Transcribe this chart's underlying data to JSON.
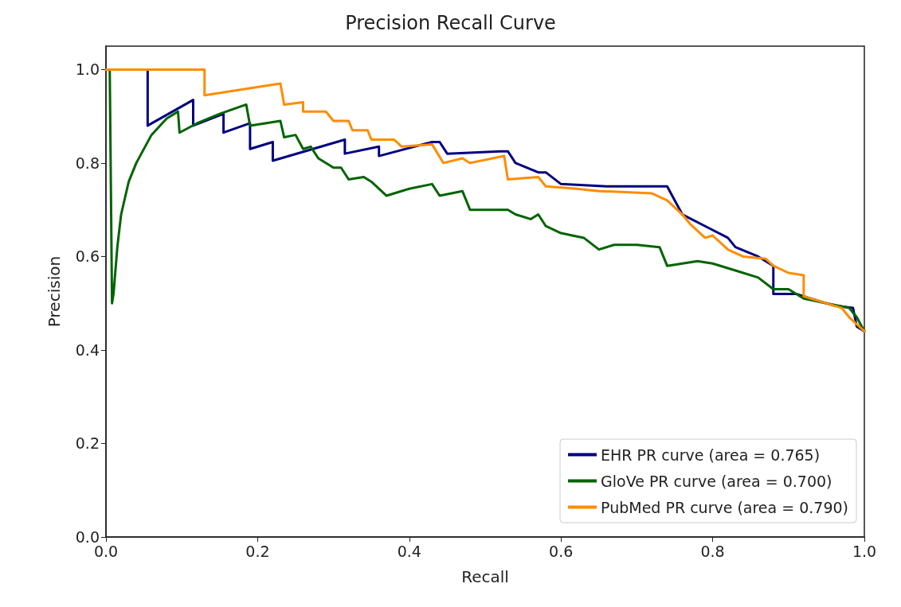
{
  "chart_data": {
    "type": "line",
    "title": "Precision Recall Curve",
    "xlabel": "Recall",
    "ylabel": "Precision",
    "xlim": [
      0,
      1
    ],
    "ylim": [
      0,
      1.05
    ],
    "xticks": [
      {
        "value": 0,
        "label": "0.0"
      },
      {
        "value": 0.2,
        "label": "0.2"
      },
      {
        "value": 0.4,
        "label": "0.4"
      },
      {
        "value": 0.6,
        "label": "0.6"
      },
      {
        "value": 0.8,
        "label": "0.8"
      },
      {
        "value": 1,
        "label": "1.0"
      }
    ],
    "yticks": [
      {
        "value": 0,
        "label": "0.0"
      },
      {
        "value": 0.2,
        "label": "0.2"
      },
      {
        "value": 0.4,
        "label": "0.4"
      },
      {
        "value": 0.6,
        "label": "0.6"
      },
      {
        "value": 0.8,
        "label": "0.8"
      },
      {
        "value": 1,
        "label": "1.0"
      }
    ],
    "grid": false,
    "legend": "bottom right",
    "marker": "none",
    "line_style": "solid",
    "series": [
      {
        "name": "EHR PR curve (area = 0.765)",
        "color": "#000080",
        "x": [
          0,
          0.055,
          0.055,
          0.115,
          0.115,
          0.155,
          0.155,
          0.19,
          0.19,
          0.22,
          0.22,
          0.315,
          0.315,
          0.36,
          0.36,
          0.43,
          0.44,
          0.45,
          0.52,
          0.53,
          0.54,
          0.57,
          0.58,
          0.6,
          0.66,
          0.72,
          0.74,
          0.75,
          0.76,
          0.79,
          0.82,
          0.83,
          0.86,
          0.88,
          0.88,
          0.91,
          0.93,
          0.96,
          0.985,
          0.99,
          1.0
        ],
        "values": [
          1,
          1,
          0.88,
          0.935,
          0.88,
          0.905,
          0.865,
          0.885,
          0.83,
          0.845,
          0.805,
          0.85,
          0.82,
          0.835,
          0.815,
          0.845,
          0.845,
          0.82,
          0.825,
          0.825,
          0.8,
          0.78,
          0.78,
          0.755,
          0.75,
          0.75,
          0.75,
          0.72,
          0.69,
          0.665,
          0.64,
          0.62,
          0.6,
          0.58,
          0.52,
          0.52,
          0.51,
          0.495,
          0.49,
          0.45,
          0.44
        ]
      },
      {
        "name": "GloVe PR curve (area = 0.700)",
        "color": "#006400",
        "x": [
          0.005,
          0.008,
          0.01,
          0.015,
          0.02,
          0.03,
          0.04,
          0.06,
          0.08,
          0.095,
          0.097,
          0.12,
          0.15,
          0.185,
          0.19,
          0.23,
          0.235,
          0.25,
          0.26,
          0.27,
          0.28,
          0.3,
          0.31,
          0.32,
          0.34,
          0.35,
          0.37,
          0.4,
          0.43,
          0.44,
          0.47,
          0.48,
          0.5,
          0.53,
          0.54,
          0.56,
          0.57,
          0.58,
          0.6,
          0.63,
          0.65,
          0.67,
          0.7,
          0.73,
          0.74,
          0.78,
          0.8,
          0.83,
          0.86,
          0.88,
          0.9,
          0.92,
          0.95,
          0.98,
          0.99,
          1.0
        ],
        "values": [
          1,
          0.5,
          0.52,
          0.62,
          0.69,
          0.76,
          0.8,
          0.86,
          0.895,
          0.91,
          0.865,
          0.885,
          0.905,
          0.925,
          0.88,
          0.89,
          0.855,
          0.86,
          0.83,
          0.835,
          0.81,
          0.79,
          0.79,
          0.765,
          0.77,
          0.76,
          0.73,
          0.745,
          0.755,
          0.73,
          0.74,
          0.7,
          0.7,
          0.7,
          0.69,
          0.68,
          0.69,
          0.665,
          0.65,
          0.64,
          0.615,
          0.625,
          0.625,
          0.62,
          0.58,
          0.59,
          0.585,
          0.57,
          0.555,
          0.53,
          0.53,
          0.51,
          0.5,
          0.49,
          0.47,
          0.44
        ]
      },
      {
        "name": "PubMed PR curve (area = 0.790)",
        "color": "#ff8c00",
        "x": [
          0,
          0.13,
          0.13,
          0.23,
          0.235,
          0.26,
          0.26,
          0.29,
          0.3,
          0.32,
          0.325,
          0.345,
          0.35,
          0.38,
          0.39,
          0.43,
          0.445,
          0.47,
          0.48,
          0.525,
          0.53,
          0.57,
          0.58,
          0.62,
          0.65,
          0.72,
          0.74,
          0.76,
          0.77,
          0.79,
          0.8,
          0.82,
          0.84,
          0.87,
          0.88,
          0.9,
          0.92,
          0.92,
          0.95,
          0.97,
          0.98,
          1.0
        ],
        "values": [
          1,
          1,
          0.945,
          0.97,
          0.925,
          0.93,
          0.91,
          0.91,
          0.89,
          0.89,
          0.87,
          0.87,
          0.85,
          0.85,
          0.835,
          0.84,
          0.8,
          0.81,
          0.8,
          0.815,
          0.765,
          0.77,
          0.75,
          0.745,
          0.74,
          0.735,
          0.72,
          0.69,
          0.67,
          0.64,
          0.645,
          0.615,
          0.6,
          0.595,
          0.58,
          0.565,
          0.56,
          0.515,
          0.5,
          0.49,
          0.47,
          0.44
        ]
      }
    ]
  }
}
